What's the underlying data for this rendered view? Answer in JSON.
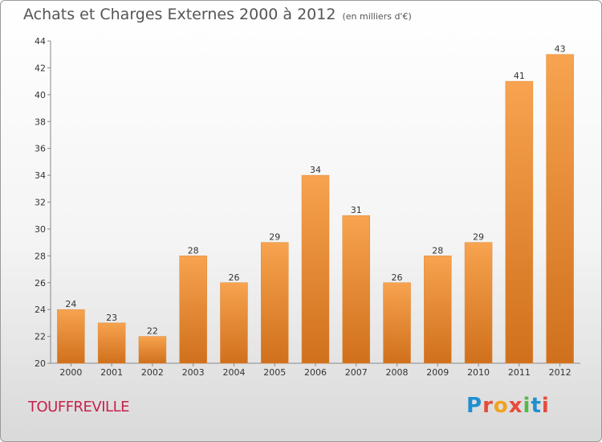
{
  "header": {
    "title": "Achats et Charges Externes 2000 à 2012",
    "unit": "(en milliers d'€)"
  },
  "footer": {
    "place": "TOUFFREVILLE",
    "logo": "Proxiti"
  },
  "colors": {
    "bar_light": "#f7a34f",
    "bar_dark": "#d0701c",
    "place": "#c8204a",
    "logo": [
      "#1f8fd1",
      "#e64b3b",
      "#f2a21d",
      "#e64b3b",
      "#57b847",
      "#1f8fd1",
      "#e64b3b"
    ]
  },
  "chart_data": {
    "type": "bar",
    "title": "Achats et Charges Externes 2000 à 2012",
    "xlabel": "",
    "ylabel": "",
    "categories": [
      "2000",
      "2001",
      "2002",
      "2003",
      "2004",
      "2005",
      "2006",
      "2007",
      "2008",
      "2009",
      "2010",
      "2011",
      "2012"
    ],
    "values": [
      24,
      23,
      22,
      28,
      26,
      29,
      34,
      31,
      26,
      28,
      29,
      41,
      43
    ],
    "ylim": [
      20,
      44
    ],
    "yticks": [
      20,
      22,
      24,
      26,
      28,
      30,
      32,
      34,
      36,
      38,
      40,
      42,
      44
    ],
    "grid": false,
    "legend": "none"
  }
}
